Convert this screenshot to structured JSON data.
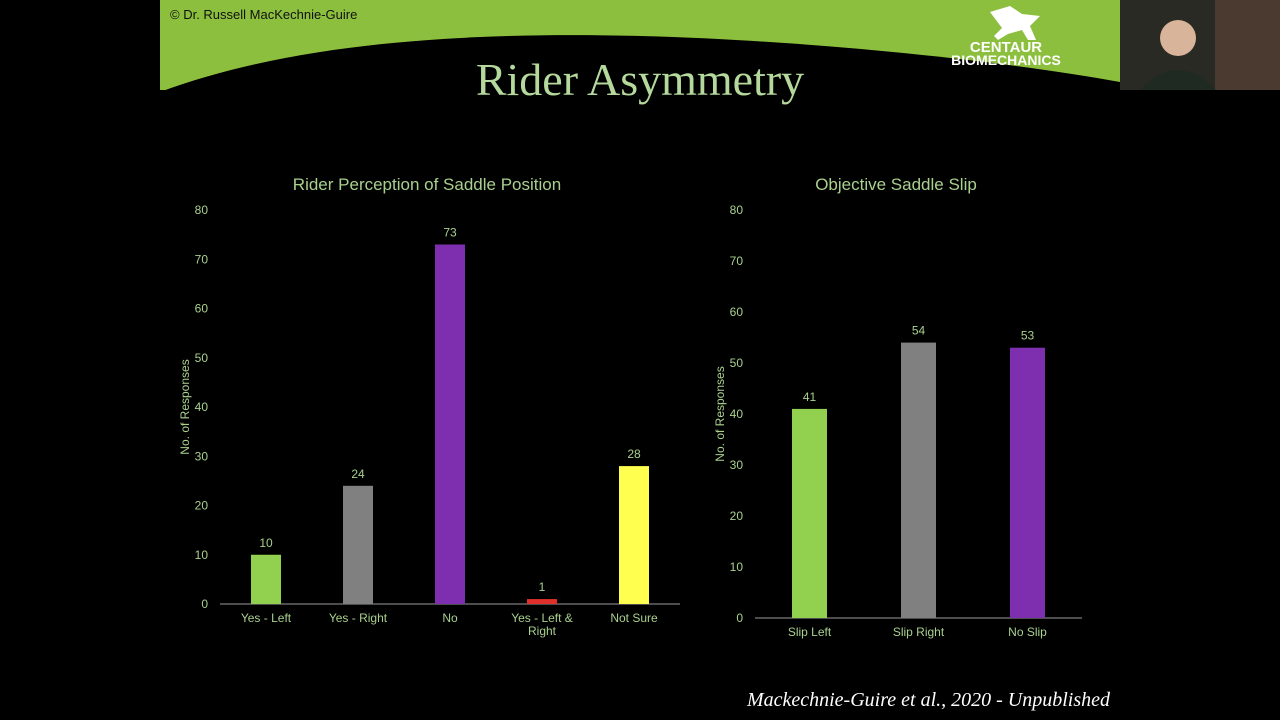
{
  "header": {
    "copyright": "© Dr. Russell MacKechnie-Guire",
    "logo_line1": "CENTAUR",
    "logo_line2": "BIOMECHANICS"
  },
  "title": "Rider Asymmetry",
  "citation": "Mackechnie-Guire et al., 2020 - Unpublished",
  "chart_data": [
    {
      "type": "bar",
      "title": "Rider Perception of Saddle Position",
      "y_label": "No. of  Responses",
      "categories": [
        "Yes - Left",
        "Yes - Right",
        "No",
        "Yes - Left & Right",
        "Not Sure"
      ],
      "values": [
        10,
        24,
        73,
        1,
        28
      ],
      "colors": [
        "#92d050",
        "#808080",
        "#7d2fb0",
        "#e0302c",
        "#ffff4f"
      ],
      "ylim": [
        0,
        80
      ],
      "yticks": [
        0,
        10,
        20,
        30,
        40,
        50,
        60,
        70,
        80
      ],
      "grid": false
    },
    {
      "type": "bar",
      "title": "Objective Saddle Slip",
      "y_label": "No. of Responses",
      "categories": [
        "Slip Left",
        "Slip Right",
        "No Slip"
      ],
      "values": [
        41,
        54,
        53
      ],
      "colors": [
        "#92d050",
        "#808080",
        "#7d2fb0"
      ],
      "ylim": [
        0,
        80
      ],
      "yticks": [
        0,
        10,
        20,
        30,
        40,
        50,
        60,
        70,
        80
      ],
      "grid": false
    }
  ]
}
